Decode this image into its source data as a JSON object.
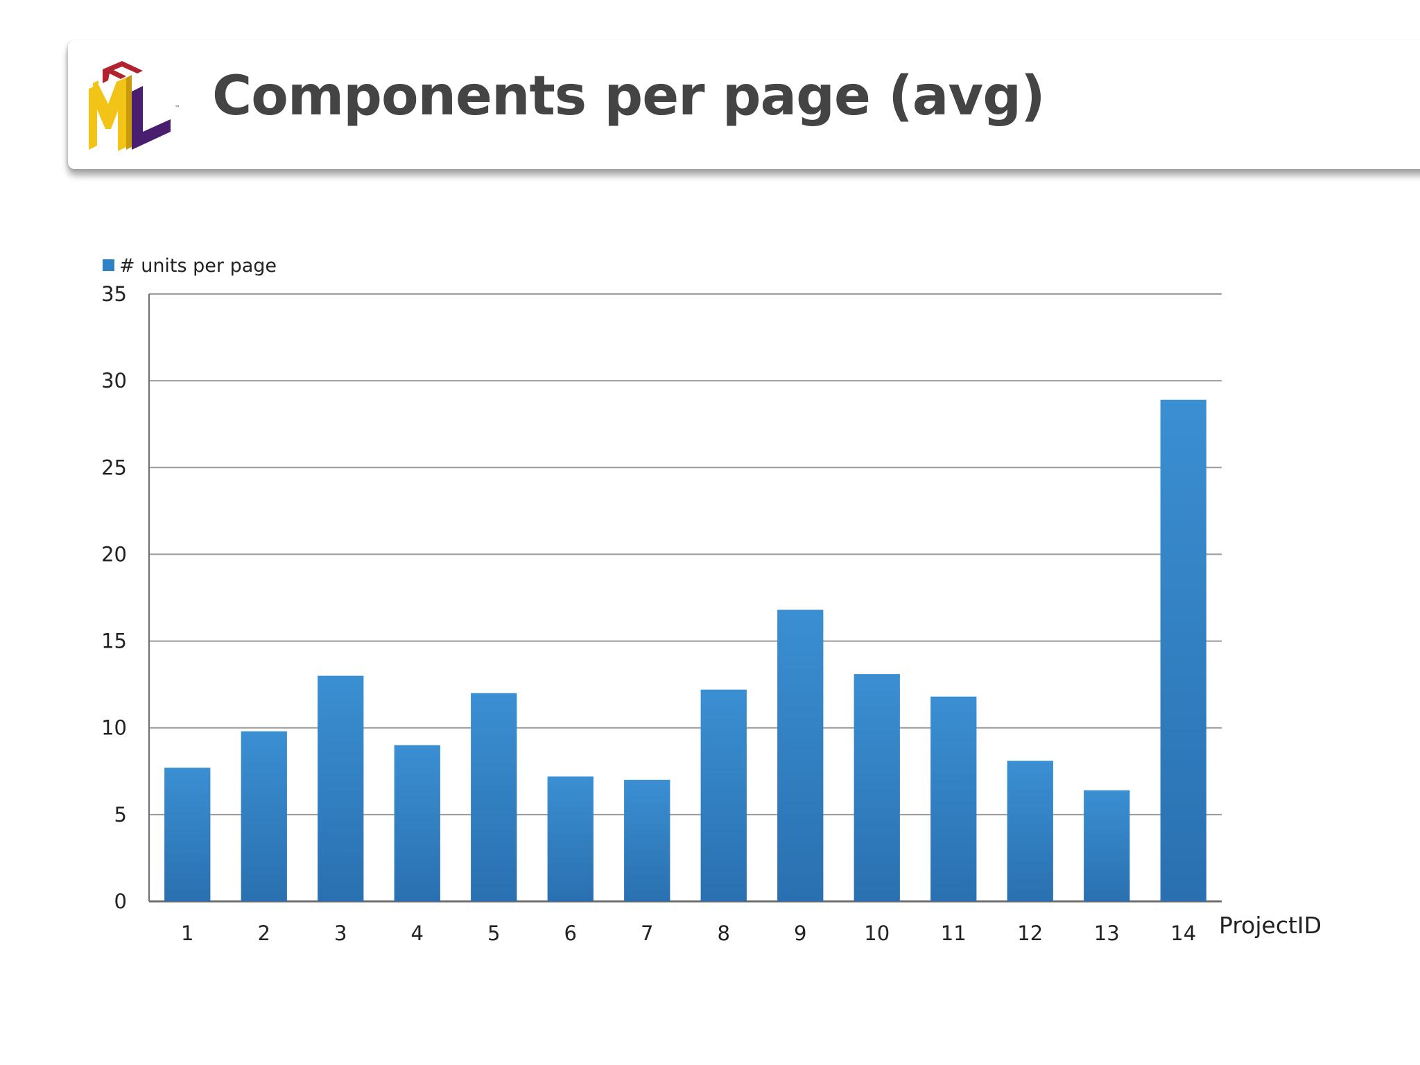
{
  "slide": {
    "title": "Components per page (avg)",
    "logo_name": "IFML"
  },
  "colors": {
    "bar": "#2f81c5",
    "title": "#444444",
    "logo_yellow": "#f2c418",
    "logo_purple": "#4a1e6e",
    "logo_red": "#b1232f"
  },
  "chart_data": {
    "type": "bar",
    "title": "",
    "xlabel": "ProjectID",
    "ylabel": "",
    "ylim": [
      0,
      35
    ],
    "yticks": [
      0,
      5,
      10,
      15,
      20,
      25,
      30,
      35
    ],
    "grid": true,
    "legend_position": "top-left",
    "categories": [
      "1",
      "2",
      "3",
      "4",
      "5",
      "6",
      "7",
      "8",
      "9",
      "10",
      "11",
      "12",
      "13",
      "14"
    ],
    "series": [
      {
        "name": "# units per page",
        "values": [
          7.7,
          9.8,
          13.0,
          9.0,
          12.0,
          7.2,
          7.0,
          12.2,
          16.8,
          13.1,
          11.8,
          8.1,
          6.4,
          28.9
        ]
      }
    ]
  }
}
